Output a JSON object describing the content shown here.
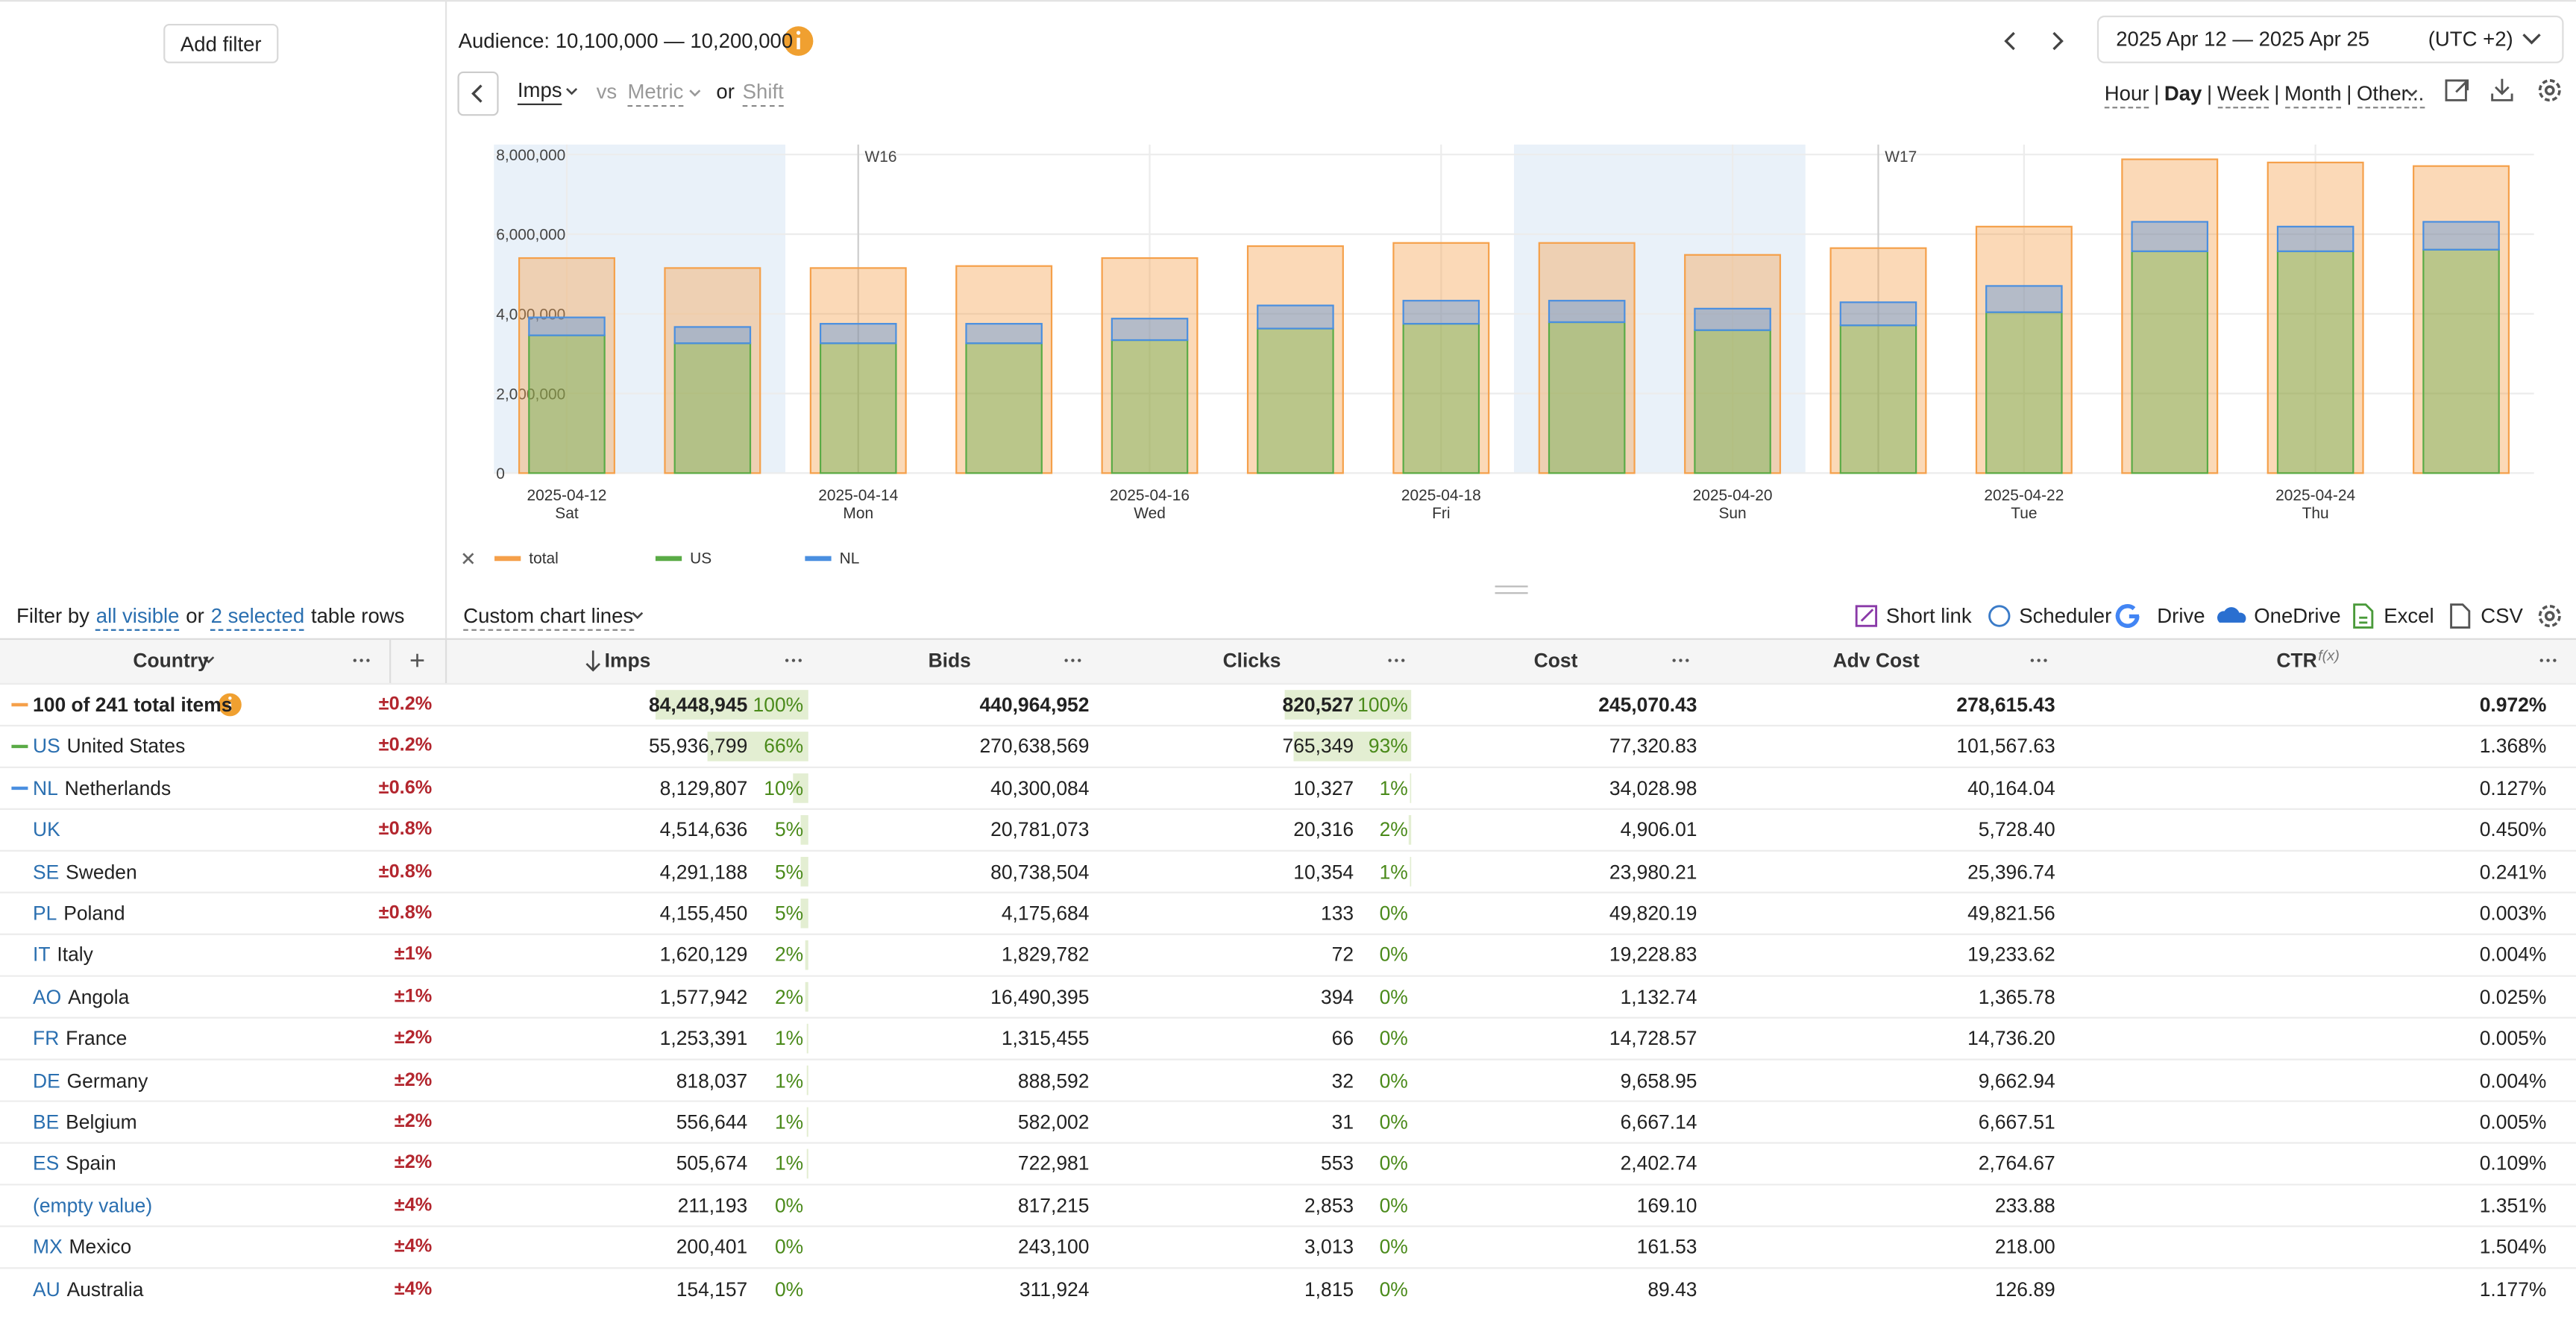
{
  "left_panel": {
    "add_filter": "Add filter"
  },
  "toolbar": {
    "audience": "Audience: 10,100,000 — 10,200,000",
    "date_range": "2025 Apr 12 — 2025 Apr 25",
    "timezone": "(UTC +2)",
    "metric": "Imps",
    "vs": "vs",
    "compare_metric": "Metric",
    "or": "or",
    "shift": "Shift",
    "granularity": [
      "Hour",
      "Day",
      "Week",
      "Month",
      "Other..."
    ],
    "granularity_active": "Day",
    "separator": "|"
  },
  "chart_data": {
    "type": "bar",
    "categories": [
      "2025-04-12",
      null,
      "2025-04-14",
      null,
      "2025-04-16",
      null,
      "2025-04-18",
      null,
      "2025-04-20",
      null,
      "2025-04-22",
      null,
      "2025-04-24",
      null
    ],
    "weekdays": [
      "Sat",
      null,
      "Mon",
      null,
      "Wed",
      null,
      "Fri",
      null,
      "Sun",
      null,
      "Tue",
      null,
      "Thu",
      null
    ],
    "week_labels": [
      {
        "label": "W16",
        "category": "2025-04-14"
      },
      {
        "label": "W17",
        "category": "2025-04-21"
      }
    ],
    "series": [
      {
        "name": "total",
        "color": "#f5a04a",
        "values": [
          5400000,
          5150000,
          5150000,
          5200000,
          5400000,
          5700000,
          5780000,
          5780000,
          5480000,
          5650000,
          6190000,
          7880000,
          7800000,
          7710000
        ]
      },
      {
        "name": "US",
        "color": "#5aab46",
        "values": [
          3460000,
          3260000,
          3260000,
          3260000,
          3340000,
          3630000,
          3750000,
          3790000,
          3590000,
          3710000,
          4040000,
          5570000,
          5570000,
          5610000
        ]
      },
      {
        "name": "NL",
        "color": "#4a8fe0",
        "values": [
          450000,
          410000,
          490000,
          490000,
          540000,
          580000,
          580000,
          540000,
          540000,
          580000,
          660000,
          740000,
          620000,
          700000
        ]
      }
    ],
    "ylim": [
      0,
      8250000
    ],
    "yticks": [
      0,
      {
        "value": 2000000,
        "label": "2,000,000"
      },
      {
        "value": 4000000,
        "label": "4,000,000"
      },
      {
        "value": 6000000,
        "label": "6,000,000"
      },
      {
        "value": 8000000,
        "label": "8,000,000"
      }
    ],
    "grid": true
  },
  "table_toolbar": {
    "filter": [
      "Filter by",
      "all visible",
      "or",
      "2 selected",
      "table rows"
    ],
    "custom_lines": "Custom chart lines",
    "exports": [
      "Short link",
      "Scheduler",
      "Drive",
      "OneDrive",
      "Excel",
      "CSV"
    ]
  },
  "table": {
    "columns": [
      "Country",
      "Imps",
      "Bids",
      "Clicks",
      "Cost",
      "Adv Cost",
      "CTR"
    ],
    "formula_mark": "f(x)",
    "rows": [
      {
        "name": "100 of 241 total items",
        "error": "±0.2%",
        "imps": "84,448,945",
        "imps_share": "100%",
        "bids": "440,964,952",
        "clicks": "820,527",
        "clicks_share": "100%",
        "cost": "245,070.43",
        "adv_cost": "278,615.43",
        "ctr": "0.972%"
      },
      {
        "code": "US",
        "name": "United States",
        "error": "±0.2%",
        "imps": "55,936,799",
        "imps_share": "66%",
        "bids": "270,638,569",
        "clicks": "765,349",
        "clicks_share": "93%",
        "cost": "77,320.83",
        "adv_cost": "101,567.63",
        "ctr": "1.368%"
      },
      {
        "code": "NL",
        "name": "Netherlands",
        "error": "±0.6%",
        "imps": "8,129,807",
        "imps_share": "10%",
        "bids": "40,300,084",
        "clicks": "10,327",
        "clicks_share": "1%",
        "cost": "34,028.98",
        "adv_cost": "40,164.04",
        "ctr": "0.127%"
      },
      {
        "code": "UK",
        "error": "±0.8%",
        "imps": "4,514,636",
        "imps_share": "5%",
        "bids": "20,781,073",
        "clicks": "20,316",
        "clicks_share": "2%",
        "cost": "4,906.01",
        "adv_cost": "5,728.40",
        "ctr": "0.450%"
      },
      {
        "code": "SE",
        "name": "Sweden",
        "error": "±0.8%",
        "imps": "4,291,188",
        "imps_share": "5%",
        "bids": "80,738,504",
        "clicks": "10,354",
        "clicks_share": "1%",
        "cost": "23,980.21",
        "adv_cost": "25,396.74",
        "ctr": "0.241%"
      },
      {
        "code": "PL",
        "name": "Poland",
        "error": "±0.8%",
        "imps": "4,155,450",
        "imps_share": "5%",
        "bids": "4,175,684",
        "clicks": "133",
        "clicks_share": "0%",
        "cost": "49,820.19",
        "adv_cost": "49,821.56",
        "ctr": "0.003%"
      },
      {
        "code": "IT",
        "name": "Italy",
        "error": "±1%",
        "imps": "1,620,129",
        "imps_share": "2%",
        "bids": "1,829,782",
        "clicks": "72",
        "clicks_share": "0%",
        "cost": "19,228.83",
        "adv_cost": "19,233.62",
        "ctr": "0.004%"
      },
      {
        "code": "AO",
        "name": "Angola",
        "error": "±1%",
        "imps": "1,577,942",
        "imps_share": "2%",
        "bids": "16,490,395",
        "clicks": "394",
        "clicks_share": "0%",
        "cost": "1,132.74",
        "adv_cost": "1,365.78",
        "ctr": "0.025%"
      },
      {
        "code": "FR",
        "name": "France",
        "error": "±2%",
        "imps": "1,253,391",
        "imps_share": "1%",
        "bids": "1,315,455",
        "clicks": "66",
        "clicks_share": "0%",
        "cost": "14,728.57",
        "adv_cost": "14,736.20",
        "ctr": "0.005%"
      },
      {
        "code": "DE",
        "name": "Germany",
        "error": "±2%",
        "imps": "818,037",
        "imps_share": "1%",
        "bids": "888,592",
        "clicks": "32",
        "clicks_share": "0%",
        "cost": "9,658.95",
        "adv_cost": "9,662.94",
        "ctr": "0.004%"
      },
      {
        "code": "BE",
        "name": "Belgium",
        "error": "±2%",
        "imps": "556,644",
        "imps_share": "1%",
        "bids": "582,002",
        "clicks": "31",
        "clicks_share": "0%",
        "cost": "6,667.14",
        "adv_cost": "6,667.51",
        "ctr": "0.005%"
      },
      {
        "code": "ES",
        "name": "Spain",
        "error": "±2%",
        "imps": "505,674",
        "imps_share": "1%",
        "bids": "722,981",
        "clicks": "553",
        "clicks_share": "0%",
        "cost": "2,402.74",
        "adv_cost": "2,764.67",
        "ctr": "0.109%"
      },
      {
        "name": "(empty value)",
        "error": "±4%",
        "imps": "211,193",
        "imps_share": "0%",
        "bids": "817,215",
        "clicks": "2,853",
        "clicks_share": "0%",
        "cost": "169.10",
        "adv_cost": "233.88",
        "ctr": "1.351%"
      },
      {
        "code": "MX",
        "name": "Mexico",
        "error": "±4%",
        "imps": "200,401",
        "imps_share": "0%",
        "bids": "243,100",
        "clicks": "3,013",
        "clicks_share": "0%",
        "cost": "161.53",
        "adv_cost": "218.00",
        "ctr": "1.504%"
      },
      {
        "code": "AU",
        "name": "Australia",
        "error": "±4%",
        "imps": "154,157",
        "imps_share": "0%",
        "bids": "311,924",
        "clicks": "1,815",
        "clicks_share": "0%",
        "cost": "89.43",
        "adv_cost": "126.89",
        "ctr": "1.177%"
      }
    ]
  }
}
